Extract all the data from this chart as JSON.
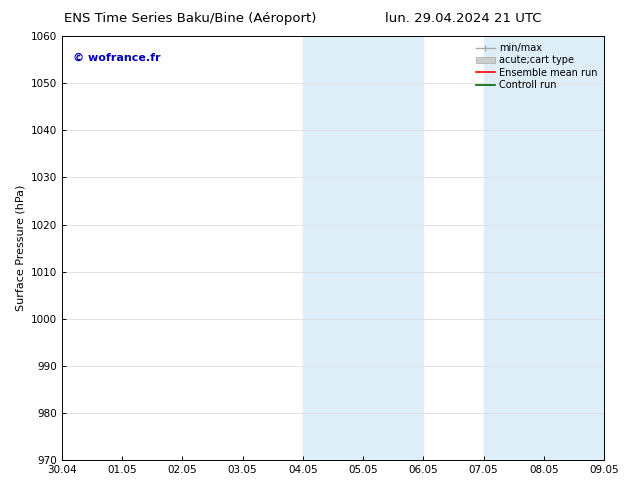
{
  "title_left": "ENS Time Series Baku/Bine (Aéroport)",
  "title_right": "lun. 29.04.2024 21 UTC",
  "ylabel": "Surface Pressure (hPa)",
  "watermark": "© wofrance.fr",
  "watermark_color": "#0000bb",
  "ylim": [
    970,
    1060
  ],
  "yticks": [
    970,
    980,
    990,
    1000,
    1010,
    1020,
    1030,
    1040,
    1050,
    1060
  ],
  "xtick_labels": [
    "30.04",
    "01.05",
    "02.05",
    "03.05",
    "04.05",
    "05.05",
    "06.05",
    "07.05",
    "08.05",
    "09.05"
  ],
  "xtick_positions": [
    0,
    1,
    2,
    3,
    4,
    5,
    6,
    7,
    8,
    9
  ],
  "shaded_regions": [
    {
      "xmin": 4.0,
      "xmax": 6.0,
      "color": "#ddeef8"
    },
    {
      "xmin": 7.0,
      "xmax": 9.0,
      "color": "#ddeef8"
    }
  ],
  "bg_color": "#ffffff",
  "grid_color": "#dddddd",
  "title_fontsize": 9.5,
  "label_fontsize": 8,
  "tick_fontsize": 7.5,
  "watermark_fontsize": 8
}
